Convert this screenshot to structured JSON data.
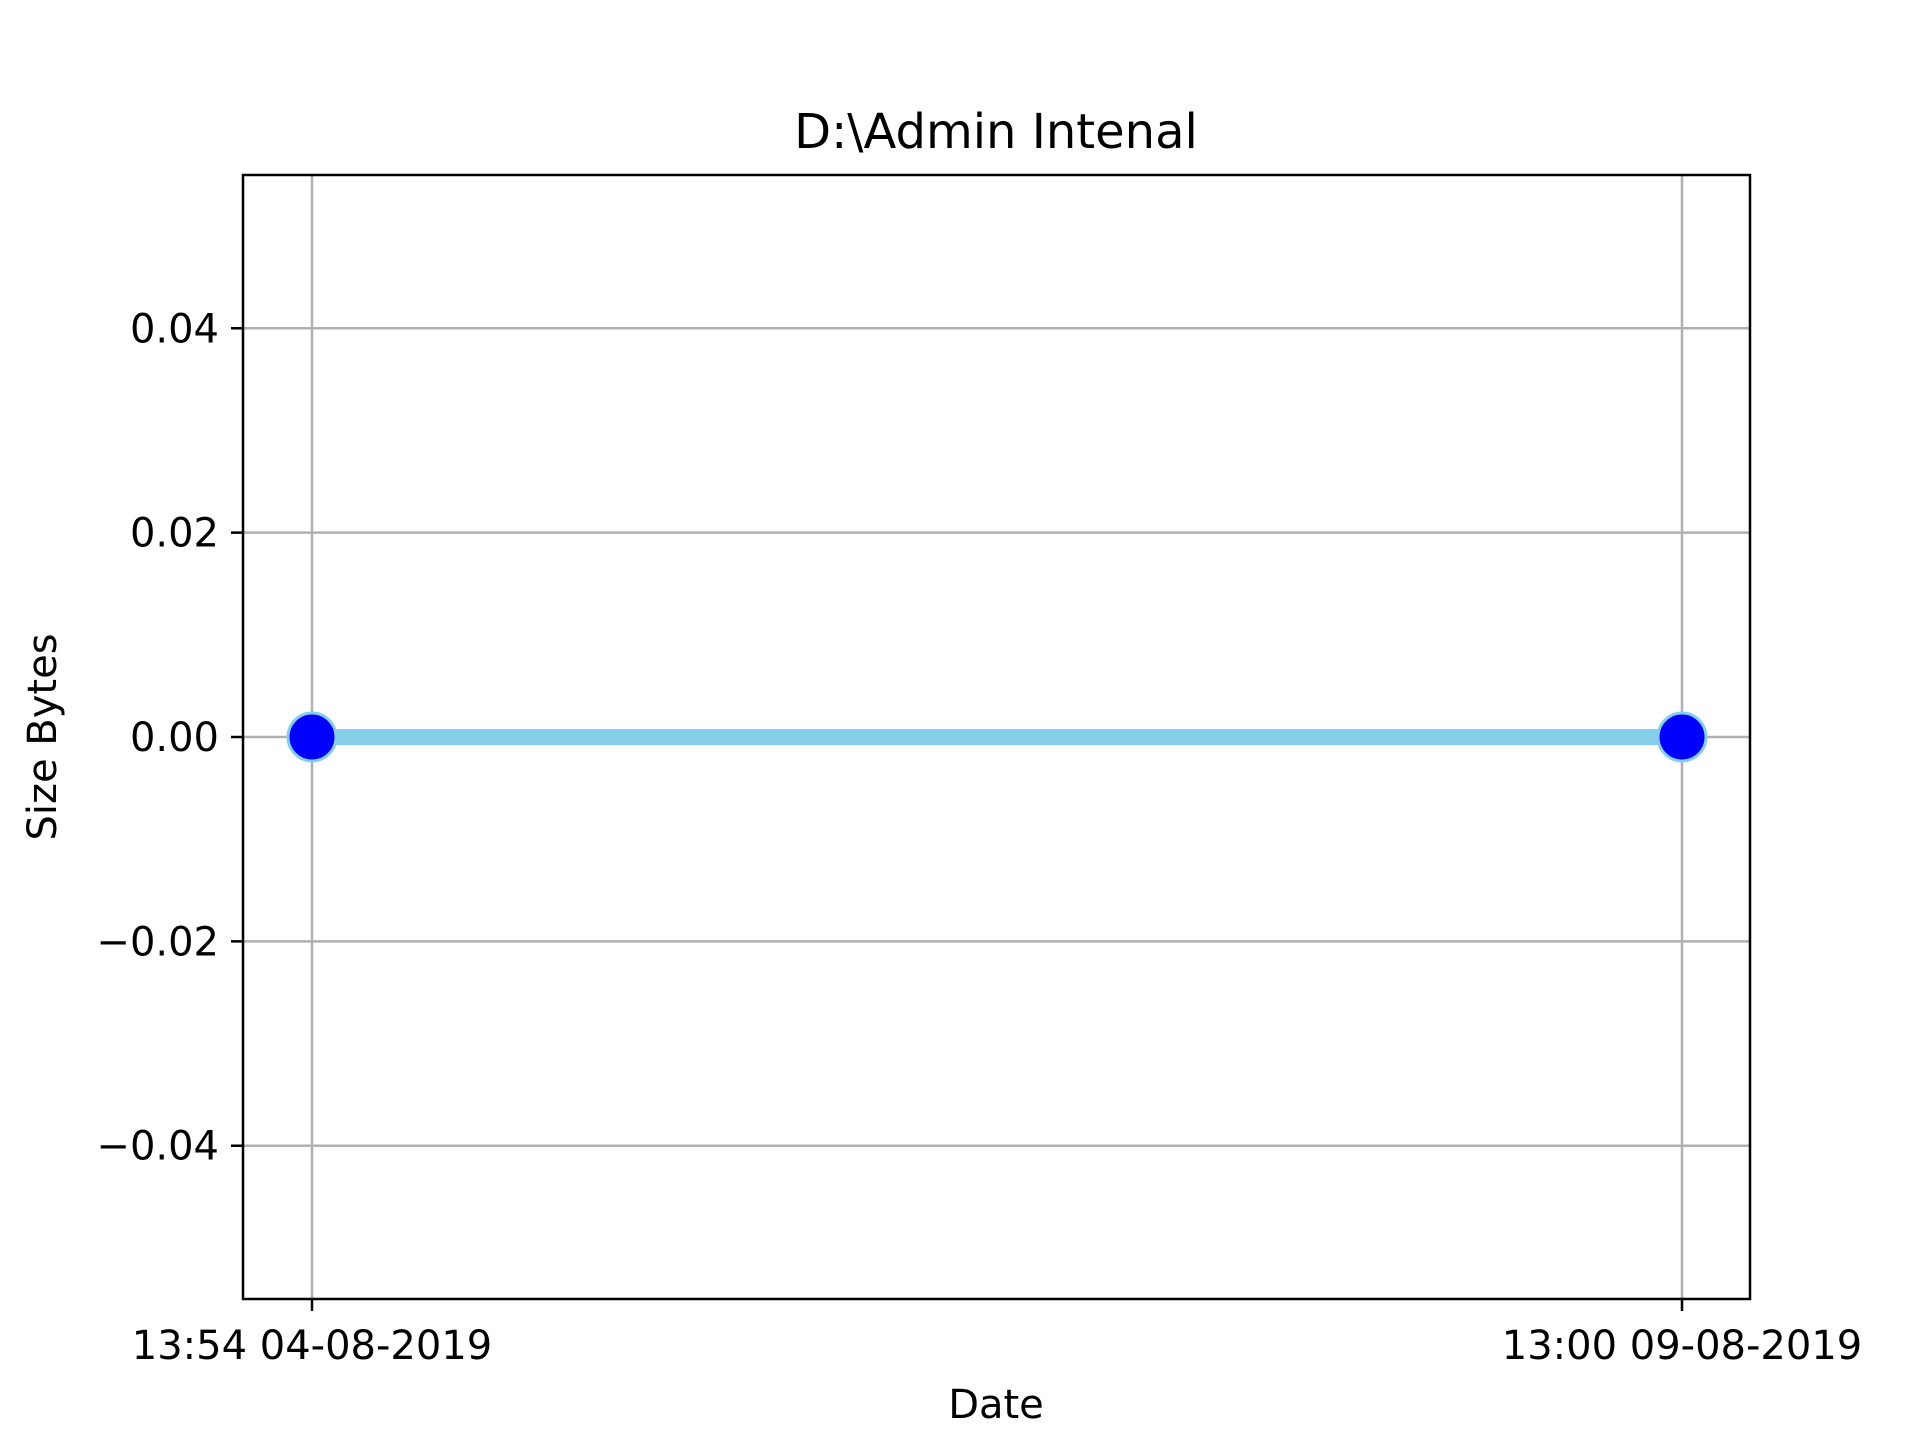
{
  "chart_data": {
    "type": "line",
    "title": "D:\\Admin Intenal",
    "xlabel": "Date",
    "ylabel": "Size Bytes",
    "x_tick_labels": [
      "13:54 04-08-2019",
      "13:00 09-08-2019"
    ],
    "y_tick_labels": [
      "−0.04",
      "−0.02",
      "0.00",
      "0.02",
      "0.04"
    ],
    "y_ticks": [
      -0.04,
      -0.02,
      0.0,
      0.02,
      0.04
    ],
    "ylim": [
      -0.055,
      0.055
    ],
    "grid": true,
    "series": [
      {
        "x": [
          "13:54 04-08-2019",
          "13:00 09-08-2019"
        ],
        "values": [
          0.0,
          0.0
        ],
        "line_color": "#87CEEB",
        "marker_color": "#0000FF",
        "marker_edge_color": "#87CEEB"
      }
    ]
  }
}
